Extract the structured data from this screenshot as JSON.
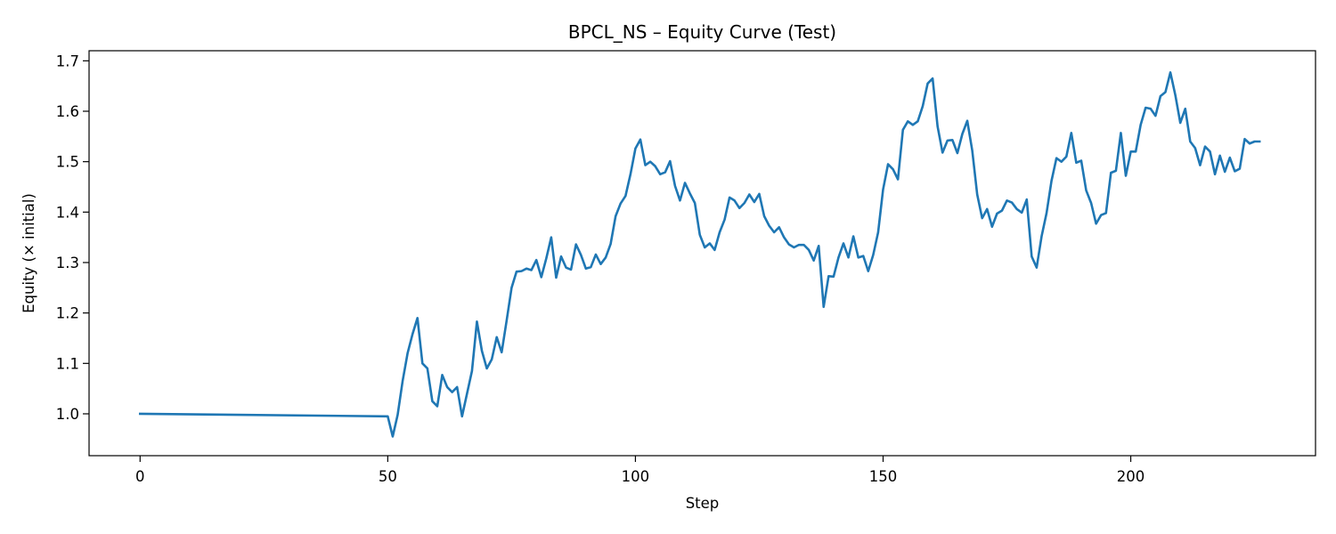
{
  "chart_data": {
    "type": "line",
    "title": "BPCL_NS – Equity Curve (Test)",
    "xlabel": "Step",
    "ylabel": "Equity (× initial)",
    "xlim": [
      -10.3,
      237.3
    ],
    "ylim": [
      0.917,
      1.72
    ],
    "xticks": [
      0,
      50,
      100,
      150,
      200
    ],
    "yticks": [
      1.0,
      1.1,
      1.2,
      1.3,
      1.4,
      1.5,
      1.6,
      1.7
    ],
    "grid": false,
    "colors": {
      "line": "#1f77b4"
    },
    "series": [
      {
        "x": [
          0,
          50,
          51,
          52,
          53,
          54,
          55,
          56,
          57,
          58,
          59,
          60,
          61,
          62,
          63,
          64,
          65,
          66,
          67,
          68,
          69,
          70,
          71,
          72,
          73,
          74,
          75,
          76,
          77,
          78,
          79,
          80,
          81,
          82,
          83,
          84,
          85,
          86,
          87,
          88,
          89,
          90,
          91,
          92,
          93,
          94,
          95,
          96,
          97,
          98,
          99,
          100,
          101,
          102,
          103,
          104,
          105,
          106,
          107,
          108,
          109,
          110,
          111,
          112,
          113,
          114,
          115,
          116,
          117,
          118,
          119,
          120,
          121,
          122,
          123,
          124,
          125,
          126,
          127,
          128,
          129,
          130,
          131,
          132,
          133,
          134,
          135,
          136,
          137,
          138,
          139,
          140,
          141,
          142,
          143,
          144,
          145,
          146,
          147,
          148,
          149,
          150,
          151,
          152,
          153,
          154,
          155,
          156,
          157,
          158,
          159,
          160,
          161,
          162,
          163,
          164,
          165,
          166,
          167,
          168,
          169,
          170,
          171,
          172,
          173,
          174,
          175,
          176,
          177,
          178,
          179,
          180,
          181,
          182,
          183,
          184,
          185,
          186,
          187,
          188,
          189,
          190,
          191,
          192,
          193,
          194,
          195,
          196,
          197,
          198,
          199,
          200,
          201,
          202,
          203,
          204,
          205,
          206,
          207,
          208,
          209,
          210,
          211,
          212,
          213,
          214,
          215,
          216,
          217,
          218,
          219,
          220,
          221,
          222,
          223,
          224,
          225,
          226
        ],
        "values": [
          1.0,
          0.995,
          0.955,
          0.998,
          1.065,
          1.12,
          1.158,
          1.19,
          1.1,
          1.09,
          1.025,
          1.015,
          1.077,
          1.053,
          1.043,
          1.053,
          0.995,
          1.04,
          1.085,
          1.183,
          1.125,
          1.09,
          1.108,
          1.152,
          1.122,
          1.185,
          1.25,
          1.282,
          1.283,
          1.288,
          1.285,
          1.305,
          1.271,
          1.308,
          1.35,
          1.27,
          1.312,
          1.29,
          1.286,
          1.336,
          1.315,
          1.288,
          1.291,
          1.316,
          1.297,
          1.31,
          1.337,
          1.392,
          1.417,
          1.432,
          1.475,
          1.526,
          1.544,
          1.493,
          1.5,
          1.491,
          1.475,
          1.479,
          1.501,
          1.452,
          1.423,
          1.458,
          1.437,
          1.418,
          1.355,
          1.33,
          1.338,
          1.325,
          1.36,
          1.385,
          1.429,
          1.423,
          1.408,
          1.418,
          1.435,
          1.42,
          1.436,
          1.392,
          1.373,
          1.36,
          1.37,
          1.35,
          1.336,
          1.33,
          1.335,
          1.335,
          1.325,
          1.304,
          1.333,
          1.212,
          1.273,
          1.272,
          1.31,
          1.338,
          1.31,
          1.352,
          1.31,
          1.313,
          1.283,
          1.315,
          1.36,
          1.445,
          1.495,
          1.485,
          1.465,
          1.563,
          1.58,
          1.573,
          1.58,
          1.61,
          1.655,
          1.665,
          1.57,
          1.518,
          1.542,
          1.543,
          1.517,
          1.555,
          1.581,
          1.522,
          1.435,
          1.388,
          1.406,
          1.371,
          1.397,
          1.403,
          1.423,
          1.419,
          1.406,
          1.399,
          1.425,
          1.312,
          1.29,
          1.352,
          1.398,
          1.462,
          1.507,
          1.5,
          1.51,
          1.557,
          1.498,
          1.502,
          1.443,
          1.418,
          1.377,
          1.394,
          1.398,
          1.478,
          1.482,
          1.557,
          1.472,
          1.52,
          1.52,
          1.573,
          1.607,
          1.605,
          1.591,
          1.63,
          1.638,
          1.677,
          1.632,
          1.577,
          1.605,
          1.54,
          1.527,
          1.493,
          1.53,
          1.52,
          1.475,
          1.512,
          1.48,
          1.508,
          1.481,
          1.486,
          1.545,
          1.536,
          1.54,
          1.54
        ]
      }
    ]
  }
}
